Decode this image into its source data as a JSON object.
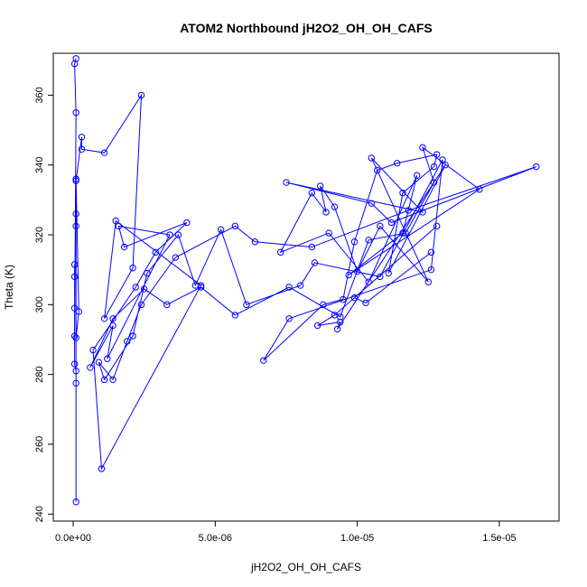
{
  "chart_data": {
    "type": "line",
    "title": "ATOM2 Northbound jH2O2_OH_OH_CAFS",
    "xlabel": "jH2O2_OH_OH_CAFS",
    "ylabel": "Theta (K)",
    "xlim": [
      -7e-07,
      1.71e-05
    ],
    "ylim": [
      238,
      372
    ],
    "x_ticks": [
      0,
      5e-06,
      1e-05,
      1.5e-05
    ],
    "x_tick_labels": [
      "0.0e+00",
      "5.0e-06",
      "1.0e-05",
      "1.5e-05"
    ],
    "y_ticks": [
      240,
      260,
      280,
      300,
      320,
      340,
      360
    ],
    "y_tick_labels": [
      "240",
      "260",
      "280",
      "300",
      "320",
      "340",
      "360"
    ],
    "grid": false,
    "marker": "open-circle",
    "series": [
      {
        "color": "#0000ff",
        "x": [
          1e-07,
          5e-08,
          1e-07,
          5e-08,
          5e-08,
          5e-08,
          5e-08,
          5e-08,
          1e-07,
          1e-07,
          1e-07,
          1e-07,
          1e-07,
          1e-07,
          2e-07,
          1e-07,
          1e-07,
          3e-07,
          3e-07,
          1.1e-06,
          2.4e-06,
          2.1e-06,
          1.1e-06,
          1.5e-06,
          4.5e-06,
          1e-06,
          7e-07,
          2.2e-06,
          2.9e-06,
          4e-06,
          1.8e-06,
          1.6e-06,
          3.4e-06,
          1.2e-06,
          1.4e-06,
          6e-07,
          1.4e-06,
          2.5e-06,
          3.3e-06,
          4.5e-06,
          5.7e-06,
          7.6e-06,
          9.4e-06,
          1.04e-05,
          1.17e-05,
          1.27e-05,
          1.23e-05,
          1.43e-05,
          9.7e-06,
          1.16e-05,
          1.21e-05,
          1.04e-05,
          9e-06,
          7.3e-06,
          8.4e-06,
          8.9e-06,
          8.7e-06,
          9.2e-06,
          1e-05,
          1.08e-05,
          1.25e-05,
          1.05e-05,
          1.23e-05,
          7.5e-06,
          1.05e-05,
          1.12e-05,
          1.63e-05,
          1.18e-05,
          8.4e-06,
          6.4e-06,
          5.7e-06,
          3.6e-06,
          2.4e-06,
          1.9e-06,
          1.4e-06,
          9e-07,
          1.1e-06,
          2.1e-06,
          2.6e-06,
          3.7e-06,
          4.3e-06,
          5.2e-06,
          6.1e-06,
          8e-06,
          8.5e-06,
          1.08e-05,
          1.3e-05,
          1.26e-05,
          7.6e-06,
          6.7e-06,
          8.8e-06,
          9.5e-06,
          9.9e-06,
          1.07e-05,
          1.14e-05,
          1.28e-05,
          1.27e-05,
          1.16e-05,
          1.11e-05,
          1.31e-05,
          9.3e-06,
          9.4e-06,
          8.6e-06,
          9.2e-06,
          1.28e-05,
          9.9e-06,
          1.03e-05,
          1.26e-05
        ],
        "y": [
          370.5,
          369,
          355,
          291,
          299,
          308,
          311.5,
          283,
          281,
          277.5,
          243.5,
          326,
          322.5,
          336,
          298,
          290.5,
          335.5,
          348,
          344.5,
          343.5,
          360,
          310.5,
          296,
          324,
          305.5,
          253,
          287,
          305,
          315,
          323.5,
          316.5,
          322.5,
          320,
          284.5,
          294,
          282,
          296,
          304.5,
          300,
          305,
          297,
          305,
          296.5,
          318.5,
          320.5,
          335,
          345,
          333,
          308.5,
          320.5,
          337,
          306.5,
          320.5,
          315,
          332,
          326.5,
          334,
          328,
          309.5,
          322.5,
          306.5,
          342,
          326.5,
          335,
          329,
          323.5,
          339.5,
          327,
          316.5,
          318,
          322.5,
          313.5,
          300,
          289.5,
          278.5,
          283.5,
          278.5,
          291,
          309,
          320,
          305.5,
          321.5,
          300,
          305.5,
          312,
          308,
          341.5,
          310,
          296,
          284,
          300,
          301.5,
          318,
          338.5,
          340.5,
          343,
          339.5,
          332,
          309,
          340,
          293,
          295,
          294,
          297,
          322.5,
          302,
          300.5,
          315
        ]
      }
    ]
  }
}
